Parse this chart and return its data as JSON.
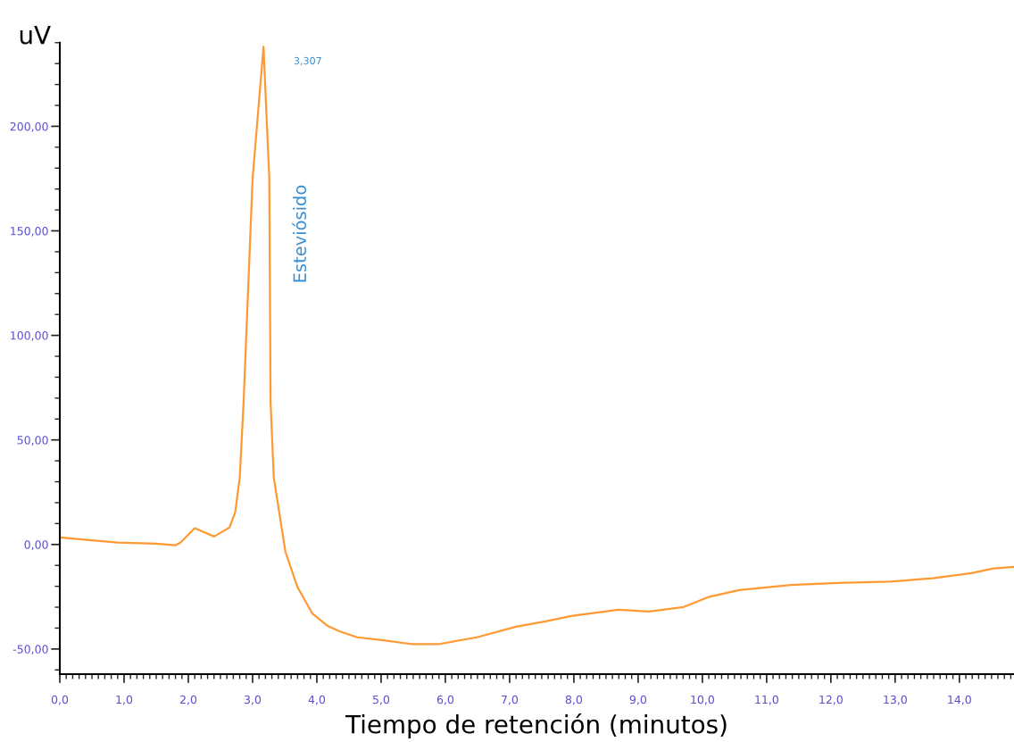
{
  "chart_data": {
    "type": "line",
    "xlabel": "Tiempo de retención (minutos)",
    "ylabel": "uV",
    "x": [
      0,
      0.46,
      0.9,
      1.5,
      1.8,
      1.88,
      2.1,
      2.4,
      2.64,
      2.73,
      2.8,
      2.86,
      3.0,
      3.17,
      3.26,
      3.28,
      3.33,
      3.51,
      3.7,
      3.93,
      4.17,
      4.35,
      4.63,
      5.01,
      5.49,
      5.89,
      6.49,
      7.1,
      7.56,
      7.96,
      8.69,
      9.17,
      9.71,
      10.11,
      10.57,
      11.38,
      12.11,
      12.92,
      13.58,
      14.19,
      14.53,
      14.85
    ],
    "series": [
      {
        "color": "#ff9933",
        "values": [
          3.4,
          2.1,
          0.9,
          0.4,
          -0.4,
          1.0,
          7.8,
          3.8,
          8.1,
          15.4,
          32,
          68,
          175,
          238,
          175,
          68,
          32,
          -3.4,
          -20.5,
          -33,
          -39,
          -41.5,
          -44.4,
          -45.7,
          -47.7,
          -47.7,
          -44.4,
          -39.3,
          -36.8,
          -34.2,
          -31.2,
          -32.1,
          -29.9,
          -25,
          -21.8,
          -19.4,
          -18.4,
          -17.8,
          -16.2,
          -13.7,
          -11.5,
          -10.7
        ]
      }
    ],
    "annotations": [
      "3,307",
      "Esteviósido"
    ],
    "xlim": [
      0,
      14.85
    ],
    "ylim": [
      -62,
      240
    ],
    "xticks": [
      {
        "value": 0,
        "label": "0,0"
      },
      {
        "value": 1,
        "label": "1,0"
      },
      {
        "value": 2,
        "label": "2,0"
      },
      {
        "value": 3,
        "label": "3,0"
      },
      {
        "value": 4,
        "label": "4,0"
      },
      {
        "value": 5,
        "label": "5,0"
      },
      {
        "value": 6,
        "label": "6,0"
      },
      {
        "value": 7,
        "label": "7,0"
      },
      {
        "value": 8,
        "label": "8,0"
      },
      {
        "value": 9,
        "label": "9,0"
      },
      {
        "value": 10,
        "label": "10,0"
      },
      {
        "value": 11,
        "label": "11,0"
      },
      {
        "value": 12,
        "label": "12,0"
      },
      {
        "value": 13,
        "label": "13,0"
      },
      {
        "value": 14,
        "label": "14,0"
      }
    ],
    "yticks": [
      {
        "value": -50,
        "label": "-50,00"
      },
      {
        "value": 0,
        "label": "0,00"
      },
      {
        "value": 50,
        "label": "50,00"
      },
      {
        "value": 100,
        "label": "100,00"
      },
      {
        "value": 150,
        "label": "150,00"
      },
      {
        "value": 200,
        "label": "200,00"
      }
    ],
    "grid": false,
    "legend": false
  }
}
